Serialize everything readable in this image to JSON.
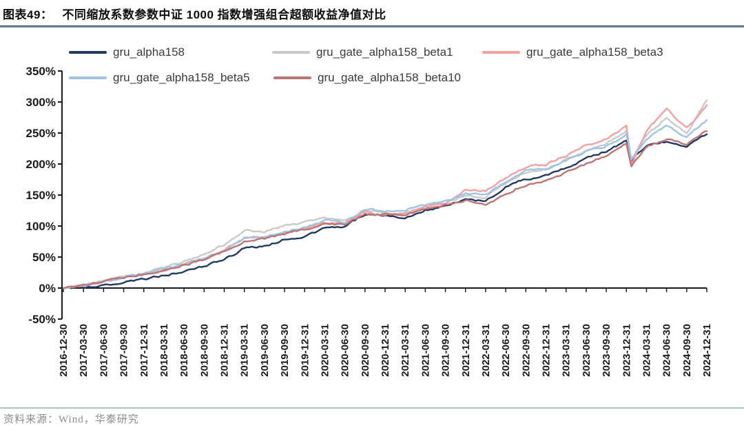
{
  "figure": {
    "label": "图表49：",
    "title": "不同缩放系数参数中证 1000 指数增强组合超额收益净值对比"
  },
  "footer": {
    "source": "资料来源：Wind，华泰研究"
  },
  "chart_data": {
    "type": "line",
    "title": "不同缩放系数参数中证 1000 指数增强组合超额收益净值对比",
    "xlabel": "",
    "ylabel": "",
    "y_axis": {
      "min": -50,
      "max": 350,
      "step": 50,
      "format": "percent"
    },
    "y_ticks": [
      "350%",
      "300%",
      "250%",
      "200%",
      "150%",
      "100%",
      "50%",
      "0%",
      "-50%"
    ],
    "grid": false,
    "legend_position": "top",
    "categories": [
      "2016-12-30",
      "2017-03-30",
      "2017-06-30",
      "2017-09-30",
      "2017-12-31",
      "2018-03-31",
      "2018-06-30",
      "2018-09-30",
      "2018-12-31",
      "2019-03-31",
      "2019-06-30",
      "2019-09-30",
      "2019-12-31",
      "2020-03-31",
      "2020-06-30",
      "2020-09-30",
      "2020-12-31",
      "2021-03-31",
      "2021-06-30",
      "2021-09-30",
      "2021-12-31",
      "2022-03-31",
      "2022-06-30",
      "2022-09-30",
      "2022-12-31",
      "2023-03-31",
      "2023-06-30",
      "2023-09-30",
      "2023-12-31",
      "2024-03-31",
      "2024-06-30",
      "2024-09-30",
      "2024-12-31"
    ],
    "x_index": [
      0,
      1,
      2,
      3,
      4,
      5,
      6,
      7,
      8,
      9,
      10,
      11,
      12,
      13,
      14,
      15,
      16,
      17,
      18,
      19,
      20,
      21,
      22,
      23,
      24,
      25,
      26,
      27,
      28,
      28.25,
      29,
      30,
      31,
      32
    ],
    "series": [
      {
        "name": "gru_alpha158",
        "color": "#1f3864",
        "values": [
          0,
          2,
          5,
          9,
          14,
          20,
          27,
          35,
          46,
          64,
          68,
          78,
          84,
          96,
          100,
          119,
          116,
          114,
          126,
          131,
          144,
          140,
          163,
          176,
          181,
          193,
          208,
          221,
          237,
          205,
          230,
          236,
          229,
          248
        ]
      },
      {
        "name": "gru_gate_alpha158_beta1",
        "color": "#c9c9c9",
        "values": [
          0,
          5,
          12,
          18,
          25,
          33,
          43,
          54,
          70,
          93,
          91,
          100,
          106,
          112,
          108,
          125,
          121,
          122,
          131,
          137,
          150,
          146,
          170,
          187,
          191,
          207,
          222,
          232,
          255,
          208,
          246,
          275,
          249,
          303
        ]
      },
      {
        "name": "gru_gate_alpha158_beta3",
        "color": "#f59f9f",
        "values": [
          0,
          5,
          11,
          16,
          22,
          29,
          38,
          48,
          62,
          80,
          82,
          90,
          96,
          106,
          105,
          122,
          118,
          120,
          131,
          137,
          158,
          157,
          177,
          195,
          199,
          214,
          230,
          239,
          263,
          198,
          253,
          290,
          258,
          295
        ]
      },
      {
        "name": "gru_gate_alpha158_beta5",
        "color": "#9dc3e6",
        "values": [
          0,
          5,
          11,
          17,
          23,
          30,
          39,
          48,
          61,
          81,
          83,
          92,
          98,
          109,
          106,
          127,
          124,
          125,
          134,
          140,
          152,
          149,
          172,
          189,
          192,
          206,
          220,
          228,
          248,
          207,
          240,
          262,
          243,
          271
        ]
      },
      {
        "name": "gru_gate_alpha158_beta10",
        "color": "#bd7473",
        "values": [
          0,
          5,
          11,
          16,
          22,
          29,
          37,
          46,
          59,
          76,
          79,
          88,
          94,
          103,
          102,
          120,
          118,
          118,
          128,
          133,
          142,
          133,
          153,
          166,
          173,
          187,
          200,
          213,
          232,
          196,
          228,
          240,
          232,
          253
        ]
      }
    ]
  }
}
